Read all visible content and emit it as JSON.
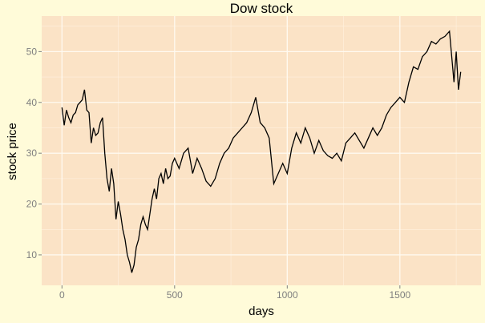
{
  "chart_data": {
    "type": "line",
    "title": "Dow stock",
    "xlabel": "days",
    "ylabel": "stock price",
    "xlim": [
      -90,
      1860
    ],
    "ylim": [
      4,
      57
    ],
    "x_ticks": [
      0,
      500,
      1000,
      1500
    ],
    "y_ticks": [
      10,
      20,
      30,
      40,
      50
    ],
    "grid": true,
    "legend": "none",
    "colors": {
      "panel": "#fbe3c6",
      "background": "#fffbd9",
      "grid": "#fff2df",
      "line": "#000000"
    },
    "series": [
      {
        "x": [
          0,
          10,
          20,
          30,
          40,
          50,
          60,
          70,
          80,
          90,
          100,
          110,
          120,
          130,
          140,
          150,
          160,
          170,
          180,
          190,
          200,
          210,
          220,
          230,
          240,
          250,
          260,
          270,
          280,
          290,
          300,
          310,
          320,
          330,
          340,
          350,
          360,
          370,
          380,
          390,
          400,
          410,
          420,
          430,
          440,
          450,
          460,
          470,
          480,
          490,
          500,
          520,
          540,
          560,
          580,
          600,
          620,
          640,
          660,
          680,
          700,
          720,
          740,
          760,
          780,
          800,
          820,
          840,
          860,
          880,
          900,
          920,
          940,
          960,
          980,
          1000,
          1020,
          1040,
          1060,
          1080,
          1100,
          1120,
          1140,
          1160,
          1180,
          1200,
          1220,
          1240,
          1260,
          1280,
          1300,
          1320,
          1340,
          1360,
          1380,
          1400,
          1420,
          1440,
          1460,
          1480,
          1500,
          1520,
          1540,
          1560,
          1580,
          1600,
          1620,
          1640,
          1660,
          1680,
          1700,
          1720,
          1740,
          1750,
          1760,
          1770
        ],
        "y": [
          39,
          35.5,
          38.5,
          37,
          36,
          37.5,
          38,
          39.5,
          40,
          40.5,
          42.5,
          38.5,
          38,
          32,
          35,
          33.5,
          34,
          36,
          37,
          30,
          25,
          22.5,
          27,
          24,
          17,
          20.5,
          18,
          15,
          13,
          10,
          8.5,
          6.5,
          8,
          11.5,
          13,
          16,
          17.5,
          16,
          15,
          18,
          21,
          23,
          21,
          25,
          26,
          24,
          27,
          25,
          25.5,
          28,
          29,
          27,
          30,
          31,
          26,
          29,
          27,
          24.5,
          23.5,
          25,
          28,
          30,
          31,
          33,
          34,
          35,
          36,
          38,
          41,
          36,
          35,
          33,
          24,
          26,
          28,
          26,
          31,
          34,
          32,
          35,
          33,
          30,
          32.5,
          30.5,
          29.5,
          29,
          30,
          28.5,
          32,
          33,
          34,
          32.5,
          31,
          33,
          35,
          33.5,
          35,
          37.5,
          39,
          40,
          41,
          40,
          44,
          47,
          46.5,
          49,
          50,
          52,
          51.5,
          52.5,
          53,
          54,
          44,
          50,
          42.5,
          46
        ]
      }
    ]
  }
}
